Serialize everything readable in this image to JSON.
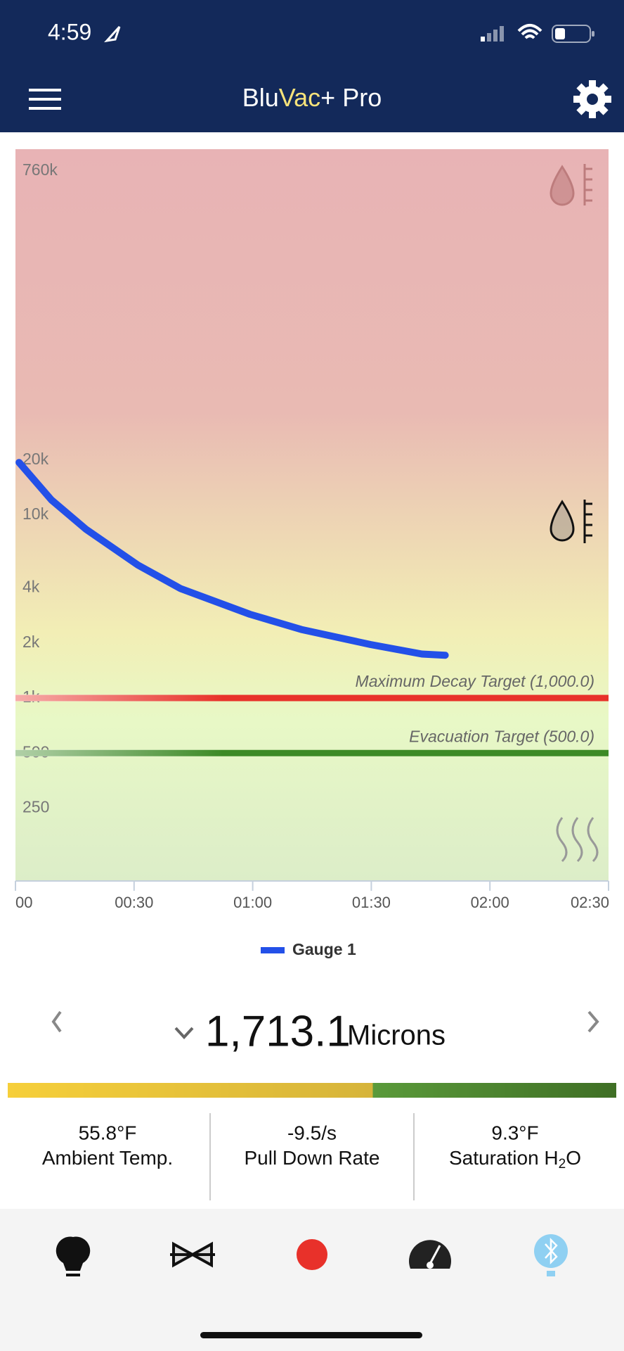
{
  "status_bar": {
    "time": "4:59"
  },
  "header": {
    "title_parts": [
      "Blu",
      "Vac",
      "+ Pro"
    ]
  },
  "chart_data": {
    "type": "line",
    "log_scale": true,
    "grid": false,
    "x": [
      0.9,
      9.1,
      17.9,
      31,
      41.8,
      59.3,
      72.3,
      89.8,
      102.8,
      108.7
    ],
    "series": [
      {
        "name": "Gauge 1",
        "color": "#2350e8",
        "values": [
          19400,
          12100,
          8350,
          5330,
          3960,
          2870,
          2370,
          1960,
          1740,
          1713.1
        ]
      }
    ],
    "xlim": [
      0,
      150
    ],
    "xticks": [
      {
        "value": 0,
        "label": "00"
      },
      {
        "value": 30,
        "label": "00:30"
      },
      {
        "value": 60,
        "label": "01:00"
      },
      {
        "value": 90,
        "label": "01:30"
      },
      {
        "value": 120,
        "label": "02:00"
      },
      {
        "value": 150,
        "label": "02:30"
      }
    ],
    "ylim": [
      100,
      1000000
    ],
    "yticks": [
      {
        "value": 760000,
        "label": "760k"
      },
      {
        "value": 20000,
        "label": "20k"
      },
      {
        "value": 10000,
        "label": "10k"
      },
      {
        "value": 4000,
        "label": "4k"
      },
      {
        "value": 2000,
        "label": "2k"
      },
      {
        "value": 1000,
        "label": "1k"
      },
      500,
      250
    ],
    "thresholds": [
      {
        "label": "Maximum Decay Target (1,000.0)",
        "value": 1000,
        "color": "#e8322a"
      },
      {
        "label": "Evacuation Target (500.0)",
        "value": 500,
        "color": "#3d8a26"
      }
    ]
  },
  "reading": {
    "value": "1,713.1",
    "unit": "Microns"
  },
  "stats": [
    {
      "value": "55.8°F",
      "label": [
        "Ambient Temp."
      ]
    },
    {
      "value": "-9.5/s",
      "label": [
        "Pull Down Rate"
      ]
    },
    {
      "value": "9.3°F",
      "label": [
        "Saturation H",
        "2",
        "O"
      ]
    }
  ]
}
